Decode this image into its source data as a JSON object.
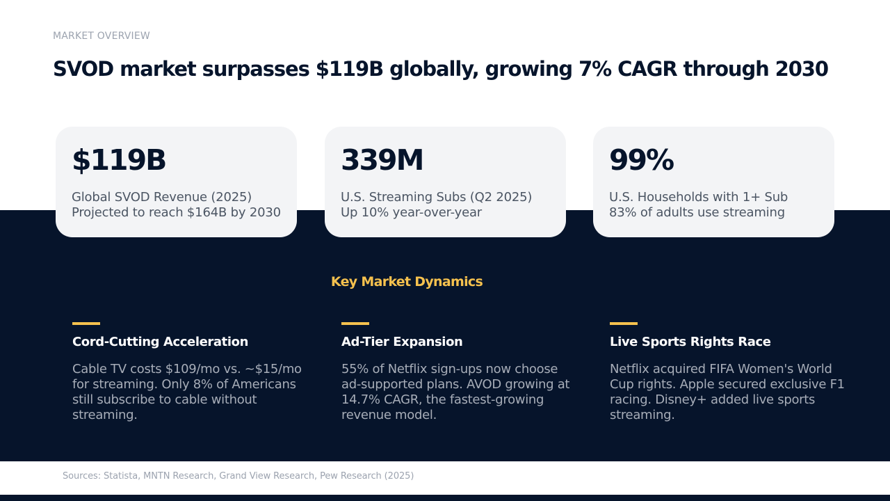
{
  "header": {
    "eyebrow": "MARKET OVERVIEW",
    "title": "SVOD market surpasses $119B globally, growing 7% CAGR through 2030"
  },
  "stats": [
    {
      "value": "$119B",
      "line1": "Global SVOD Revenue (2025)",
      "line2": "Projected to reach $164B by 2030"
    },
    {
      "value": "339M",
      "line1": "U.S. Streaming Subs (Q2 2025)",
      "line2": "Up 10% year-over-year"
    },
    {
      "value": "99%",
      "line1": "U.S. Households with 1+ Sub",
      "line2": "83% of adults use streaming"
    }
  ],
  "dynamics": {
    "title": "Key Market Dynamics",
    "items": [
      {
        "title": "Cord-Cutting Acceleration",
        "body": "Cable TV costs $109/mo vs. ~$15/mo for streaming. Only 8% of Americans still subscribe to cable without streaming."
      },
      {
        "title": "Ad-Tier Expansion",
        "body": "55% of Netflix sign-ups now choose ad-supported plans. AVOD growing at 14.7% CAGR, the fastest-growing revenue model."
      },
      {
        "title": "Live Sports Rights Race",
        "body": "Netflix acquired FIFA Women's World Cup rights. Apple secured exclusive F1 racing. Disney+ added live sports streaming."
      }
    ]
  },
  "footer": {
    "sources": "Sources: Statista, MNTN Research, Grand View Research, Pew Research (2025)"
  },
  "colors": {
    "navy": "#06142b",
    "accent_yellow": "#f5c14e",
    "card_bg": "#f3f4f6"
  }
}
